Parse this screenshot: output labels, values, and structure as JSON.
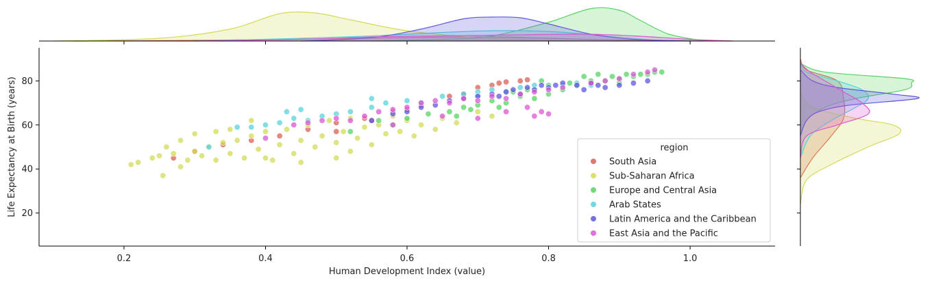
{
  "chart_data": {
    "type": "scatter",
    "title": "",
    "xlabel": "Human Development Index (value)",
    "ylabel": "Life Expectancy at Birth (years)",
    "xlim": [
      0.08,
      1.12
    ],
    "ylim": [
      5,
      95
    ],
    "xticks": [
      0.2,
      0.4,
      0.6,
      0.8,
      1.0
    ],
    "xtick_labels": [
      "0.2",
      "0.4",
      "0.6",
      "0.8",
      "1.0"
    ],
    "yticks": [
      20,
      40,
      60,
      80
    ],
    "ytick_labels": [
      "20",
      "40",
      "60",
      "80"
    ],
    "grid": false,
    "legend": {
      "title": "region",
      "placement": "lower-right"
    },
    "marginals": {
      "top": "kde of x per series",
      "right": "kde of y per series"
    },
    "series": [
      {
        "name": "South Asia",
        "color": "#db5f57",
        "points": [
          [
            0.27,
            45
          ],
          [
            0.3,
            48
          ],
          [
            0.34,
            51
          ],
          [
            0.38,
            53
          ],
          [
            0.42,
            55
          ],
          [
            0.46,
            58
          ],
          [
            0.5,
            61
          ],
          [
            0.54,
            63
          ],
          [
            0.58,
            66
          ],
          [
            0.62,
            69
          ],
          [
            0.66,
            73
          ],
          [
            0.7,
            77
          ],
          [
            0.72,
            78
          ],
          [
            0.74,
            79.5
          ],
          [
            0.76,
            80
          ],
          [
            0.77,
            80.5
          ],
          [
            0.5,
            57
          ],
          [
            0.55,
            62
          ],
          [
            0.6,
            67
          ],
          [
            0.68,
            74
          ],
          [
            0.73,
            79
          ]
        ],
        "kde_x": [
          [
            0.13,
            0
          ],
          [
            0.3,
            0.02
          ],
          [
            0.5,
            0.07
          ],
          [
            0.62,
            0.11
          ],
          [
            0.72,
            0.12
          ],
          [
            0.8,
            0.08
          ],
          [
            0.9,
            0.03
          ],
          [
            1.06,
            0
          ]
        ],
        "kde_y": [
          [
            36,
            0
          ],
          [
            45,
            0.1
          ],
          [
            55,
            0.25
          ],
          [
            63,
            0.35
          ],
          [
            72,
            0.35
          ],
          [
            80,
            0.3
          ],
          [
            85,
            0.05
          ],
          [
            90,
            0
          ]
        ]
      },
      {
        "name": "Sub-Saharan Africa",
        "color": "#d3db57",
        "points": [
          [
            0.21,
            42
          ],
          [
            0.22,
            43
          ],
          [
            0.24,
            45
          ],
          [
            0.25,
            46
          ],
          [
            0.255,
            37
          ],
          [
            0.27,
            47
          ],
          [
            0.28,
            41
          ],
          [
            0.29,
            44
          ],
          [
            0.3,
            48
          ],
          [
            0.31,
            46
          ],
          [
            0.32,
            50
          ],
          [
            0.33,
            44
          ],
          [
            0.34,
            52
          ],
          [
            0.35,
            47
          ],
          [
            0.36,
            53
          ],
          [
            0.37,
            45
          ],
          [
            0.38,
            55
          ],
          [
            0.39,
            49
          ],
          [
            0.4,
            57
          ],
          [
            0.41,
            44
          ],
          [
            0.42,
            51
          ],
          [
            0.43,
            58
          ],
          [
            0.44,
            47
          ],
          [
            0.45,
            53
          ],
          [
            0.46,
            60
          ],
          [
            0.47,
            50
          ],
          [
            0.48,
            55
          ],
          [
            0.49,
            62
          ],
          [
            0.5,
            52
          ],
          [
            0.51,
            57
          ],
          [
            0.52,
            63
          ],
          [
            0.53,
            54
          ],
          [
            0.54,
            59
          ],
          [
            0.55,
            51
          ],
          [
            0.56,
            60
          ],
          [
            0.57,
            56
          ],
          [
            0.58,
            64
          ],
          [
            0.59,
            57
          ],
          [
            0.6,
            62
          ],
          [
            0.61,
            55
          ],
          [
            0.62,
            60
          ],
          [
            0.64,
            58
          ],
          [
            0.65,
            63
          ],
          [
            0.67,
            61
          ],
          [
            0.7,
            66
          ],
          [
            0.72,
            64
          ],
          [
            0.3,
            56
          ],
          [
            0.35,
            58
          ],
          [
            0.38,
            62
          ],
          [
            0.4,
            45
          ],
          [
            0.45,
            43
          ],
          [
            0.5,
            45
          ],
          [
            0.52,
            48
          ],
          [
            0.28,
            53
          ],
          [
            0.26,
            50
          ],
          [
            0.33,
            57
          ]
        ],
        "kde_x": [
          [
            0.1,
            0
          ],
          [
            0.25,
            0.08
          ],
          [
            0.35,
            0.35
          ],
          [
            0.42,
            0.8
          ],
          [
            0.47,
            0.82
          ],
          [
            0.52,
            0.62
          ],
          [
            0.6,
            0.3
          ],
          [
            0.7,
            0.1
          ],
          [
            0.8,
            0.02
          ],
          [
            0.9,
            0
          ]
        ],
        "kde_y": [
          [
            24,
            0
          ],
          [
            35,
            0.05
          ],
          [
            42,
            0.25
          ],
          [
            50,
            0.55
          ],
          [
            56,
            0.8
          ],
          [
            60,
            0.75
          ],
          [
            63,
            0.45
          ],
          [
            68,
            0.1
          ],
          [
            75,
            0
          ]
        ]
      },
      {
        "name": "Europe and Central Asia",
        "color": "#57d363",
        "points": [
          [
            0.52,
            57
          ],
          [
            0.56,
            62
          ],
          [
            0.6,
            63
          ],
          [
            0.63,
            65
          ],
          [
            0.66,
            66
          ],
          [
            0.68,
            68
          ],
          [
            0.7,
            69
          ],
          [
            0.72,
            71
          ],
          [
            0.74,
            70
          ],
          [
            0.76,
            73
          ],
          [
            0.78,
            72
          ],
          [
            0.8,
            74
          ],
          [
            0.82,
            76
          ],
          [
            0.84,
            78
          ],
          [
            0.86,
            80
          ],
          [
            0.88,
            80
          ],
          [
            0.9,
            81
          ],
          [
            0.92,
            82
          ],
          [
            0.93,
            83
          ],
          [
            0.95,
            84
          ],
          [
            0.96,
            84
          ],
          [
            0.85,
            82
          ],
          [
            0.87,
            83
          ],
          [
            0.89,
            82
          ],
          [
            0.91,
            83
          ],
          [
            0.83,
            79
          ],
          [
            0.8,
            78
          ],
          [
            0.79,
            80
          ],
          [
            0.77,
            76
          ],
          [
            0.75,
            75
          ],
          [
            0.73,
            68
          ],
          [
            0.69,
            67
          ],
          [
            0.67,
            64
          ],
          [
            0.58,
            60
          ],
          [
            0.9,
            79
          ],
          [
            0.94,
            83
          ]
        ],
        "kde_x": [
          [
            0.55,
            0
          ],
          [
            0.65,
            0.05
          ],
          [
            0.72,
            0.15
          ],
          [
            0.8,
            0.55
          ],
          [
            0.86,
            0.95
          ],
          [
            0.9,
            0.9
          ],
          [
            0.93,
            0.6
          ],
          [
            0.97,
            0.2
          ],
          [
            1.02,
            0
          ]
        ],
        "kde_y": [
          [
            55,
            0
          ],
          [
            62,
            0.05
          ],
          [
            68,
            0.2
          ],
          [
            72,
            0.45
          ],
          [
            76,
            0.85
          ],
          [
            79,
            0.9
          ],
          [
            81,
            0.85
          ],
          [
            84,
            0.2
          ],
          [
            88,
            0
          ]
        ]
      },
      {
        "name": "Arab States",
        "color": "#57d3db",
        "points": [
          [
            0.32,
            50
          ],
          [
            0.36,
            59
          ],
          [
            0.4,
            60
          ],
          [
            0.42,
            61
          ],
          [
            0.44,
            63
          ],
          [
            0.46,
            62
          ],
          [
            0.48,
            64
          ],
          [
            0.5,
            65
          ],
          [
            0.52,
            66
          ],
          [
            0.55,
            68
          ],
          [
            0.57,
            70
          ],
          [
            0.6,
            71
          ],
          [
            0.62,
            70
          ],
          [
            0.65,
            73
          ],
          [
            0.68,
            74
          ],
          [
            0.7,
            75
          ],
          [
            0.72,
            76
          ],
          [
            0.74,
            75
          ],
          [
            0.76,
            77
          ],
          [
            0.78,
            78
          ],
          [
            0.8,
            77
          ],
          [
            0.82,
            78
          ],
          [
            0.84,
            79
          ],
          [
            0.86,
            78
          ],
          [
            0.43,
            66
          ],
          [
            0.55,
            72
          ],
          [
            0.7,
            73
          ],
          [
            0.78,
            76
          ],
          [
            0.38,
            59
          ],
          [
            0.45,
            67
          ]
        ],
        "kde_x": [
          [
            0.3,
            0
          ],
          [
            0.45,
            0.08
          ],
          [
            0.55,
            0.15
          ],
          [
            0.65,
            0.25
          ],
          [
            0.72,
            0.3
          ],
          [
            0.8,
            0.28
          ],
          [
            0.88,
            0.15
          ],
          [
            0.95,
            0.03
          ],
          [
            1.02,
            0
          ]
        ],
        "kde_y": [
          [
            45,
            0
          ],
          [
            55,
            0.08
          ],
          [
            62,
            0.25
          ],
          [
            68,
            0.45
          ],
          [
            72,
            0.55
          ],
          [
            76,
            0.5
          ],
          [
            80,
            0.3
          ],
          [
            84,
            0.05
          ],
          [
            88,
            0
          ]
        ]
      },
      {
        "name": "Latin America and the Caribbean",
        "color": "#5f57db",
        "points": [
          [
            0.55,
            62
          ],
          [
            0.58,
            65
          ],
          [
            0.6,
            66
          ],
          [
            0.62,
            68
          ],
          [
            0.64,
            69
          ],
          [
            0.66,
            71
          ],
          [
            0.68,
            72
          ],
          [
            0.7,
            73
          ],
          [
            0.72,
            74
          ],
          [
            0.73,
            73
          ],
          [
            0.74,
            75
          ],
          [
            0.75,
            76
          ],
          [
            0.76,
            74
          ],
          [
            0.77,
            77
          ],
          [
            0.78,
            76
          ],
          [
            0.79,
            78
          ],
          [
            0.8,
            77
          ],
          [
            0.81,
            78
          ],
          [
            0.82,
            79
          ],
          [
            0.84,
            78
          ],
          [
            0.86,
            79
          ],
          [
            0.88,
            77
          ],
          [
            0.9,
            78
          ],
          [
            0.92,
            79
          ],
          [
            0.94,
            80
          ],
          [
            0.85,
            76
          ],
          [
            0.87,
            78
          ]
        ],
        "kde_x": [
          [
            0.45,
            0
          ],
          [
            0.55,
            0.1
          ],
          [
            0.62,
            0.35
          ],
          [
            0.68,
            0.65
          ],
          [
            0.72,
            0.7
          ],
          [
            0.76,
            0.68
          ],
          [
            0.8,
            0.5
          ],
          [
            0.86,
            0.2
          ],
          [
            0.92,
            0.05
          ],
          [
            1.0,
            0
          ]
        ],
        "kde_y": [
          [
            55,
            0
          ],
          [
            62,
            0.05
          ],
          [
            66,
            0.15
          ],
          [
            69,
            0.4
          ],
          [
            72,
            0.95
          ],
          [
            74,
            0.75
          ],
          [
            77,
            0.3
          ],
          [
            80,
            0.1
          ],
          [
            85,
            0
          ]
        ]
      },
      {
        "name": "East Asia and the Pacific",
        "color": "#db57d3",
        "points": [
          [
            0.4,
            54
          ],
          [
            0.44,
            60
          ],
          [
            0.46,
            61
          ],
          [
            0.48,
            62
          ],
          [
            0.5,
            63
          ],
          [
            0.52,
            62
          ],
          [
            0.54,
            64
          ],
          [
            0.56,
            66
          ],
          [
            0.58,
            67
          ],
          [
            0.6,
            68
          ],
          [
            0.62,
            70
          ],
          [
            0.64,
            71
          ],
          [
            0.66,
            70
          ],
          [
            0.68,
            72
          ],
          [
            0.7,
            71
          ],
          [
            0.72,
            73
          ],
          [
            0.74,
            72
          ],
          [
            0.76,
            74
          ],
          [
            0.78,
            75
          ],
          [
            0.8,
            76
          ],
          [
            0.82,
            77
          ],
          [
            0.86,
            79
          ],
          [
            0.88,
            80
          ],
          [
            0.9,
            81
          ],
          [
            0.92,
            83
          ],
          [
            0.94,
            84
          ],
          [
            0.95,
            85
          ],
          [
            0.78,
            64
          ],
          [
            0.8,
            65
          ],
          [
            0.79,
            66
          ],
          [
            0.65,
            64
          ],
          [
            0.58,
            60
          ],
          [
            0.7,
            63
          ],
          [
            0.74,
            66
          ],
          [
            0.77,
            68
          ]
        ],
        "kde_x": [
          [
            0.3,
            0
          ],
          [
            0.45,
            0.05
          ],
          [
            0.55,
            0.12
          ],
          [
            0.65,
            0.15
          ],
          [
            0.75,
            0.18
          ],
          [
            0.85,
            0.2
          ],
          [
            0.92,
            0.15
          ],
          [
            1.0,
            0.05
          ],
          [
            1.06,
            0
          ]
        ],
        "kde_y": [
          [
            45,
            0
          ],
          [
            55,
            0.05
          ],
          [
            60,
            0.3
          ],
          [
            65,
            0.55
          ],
          [
            70,
            0.5
          ],
          [
            75,
            0.35
          ],
          [
            80,
            0.2
          ],
          [
            84,
            0.08
          ],
          [
            88,
            0
          ]
        ]
      }
    ]
  }
}
